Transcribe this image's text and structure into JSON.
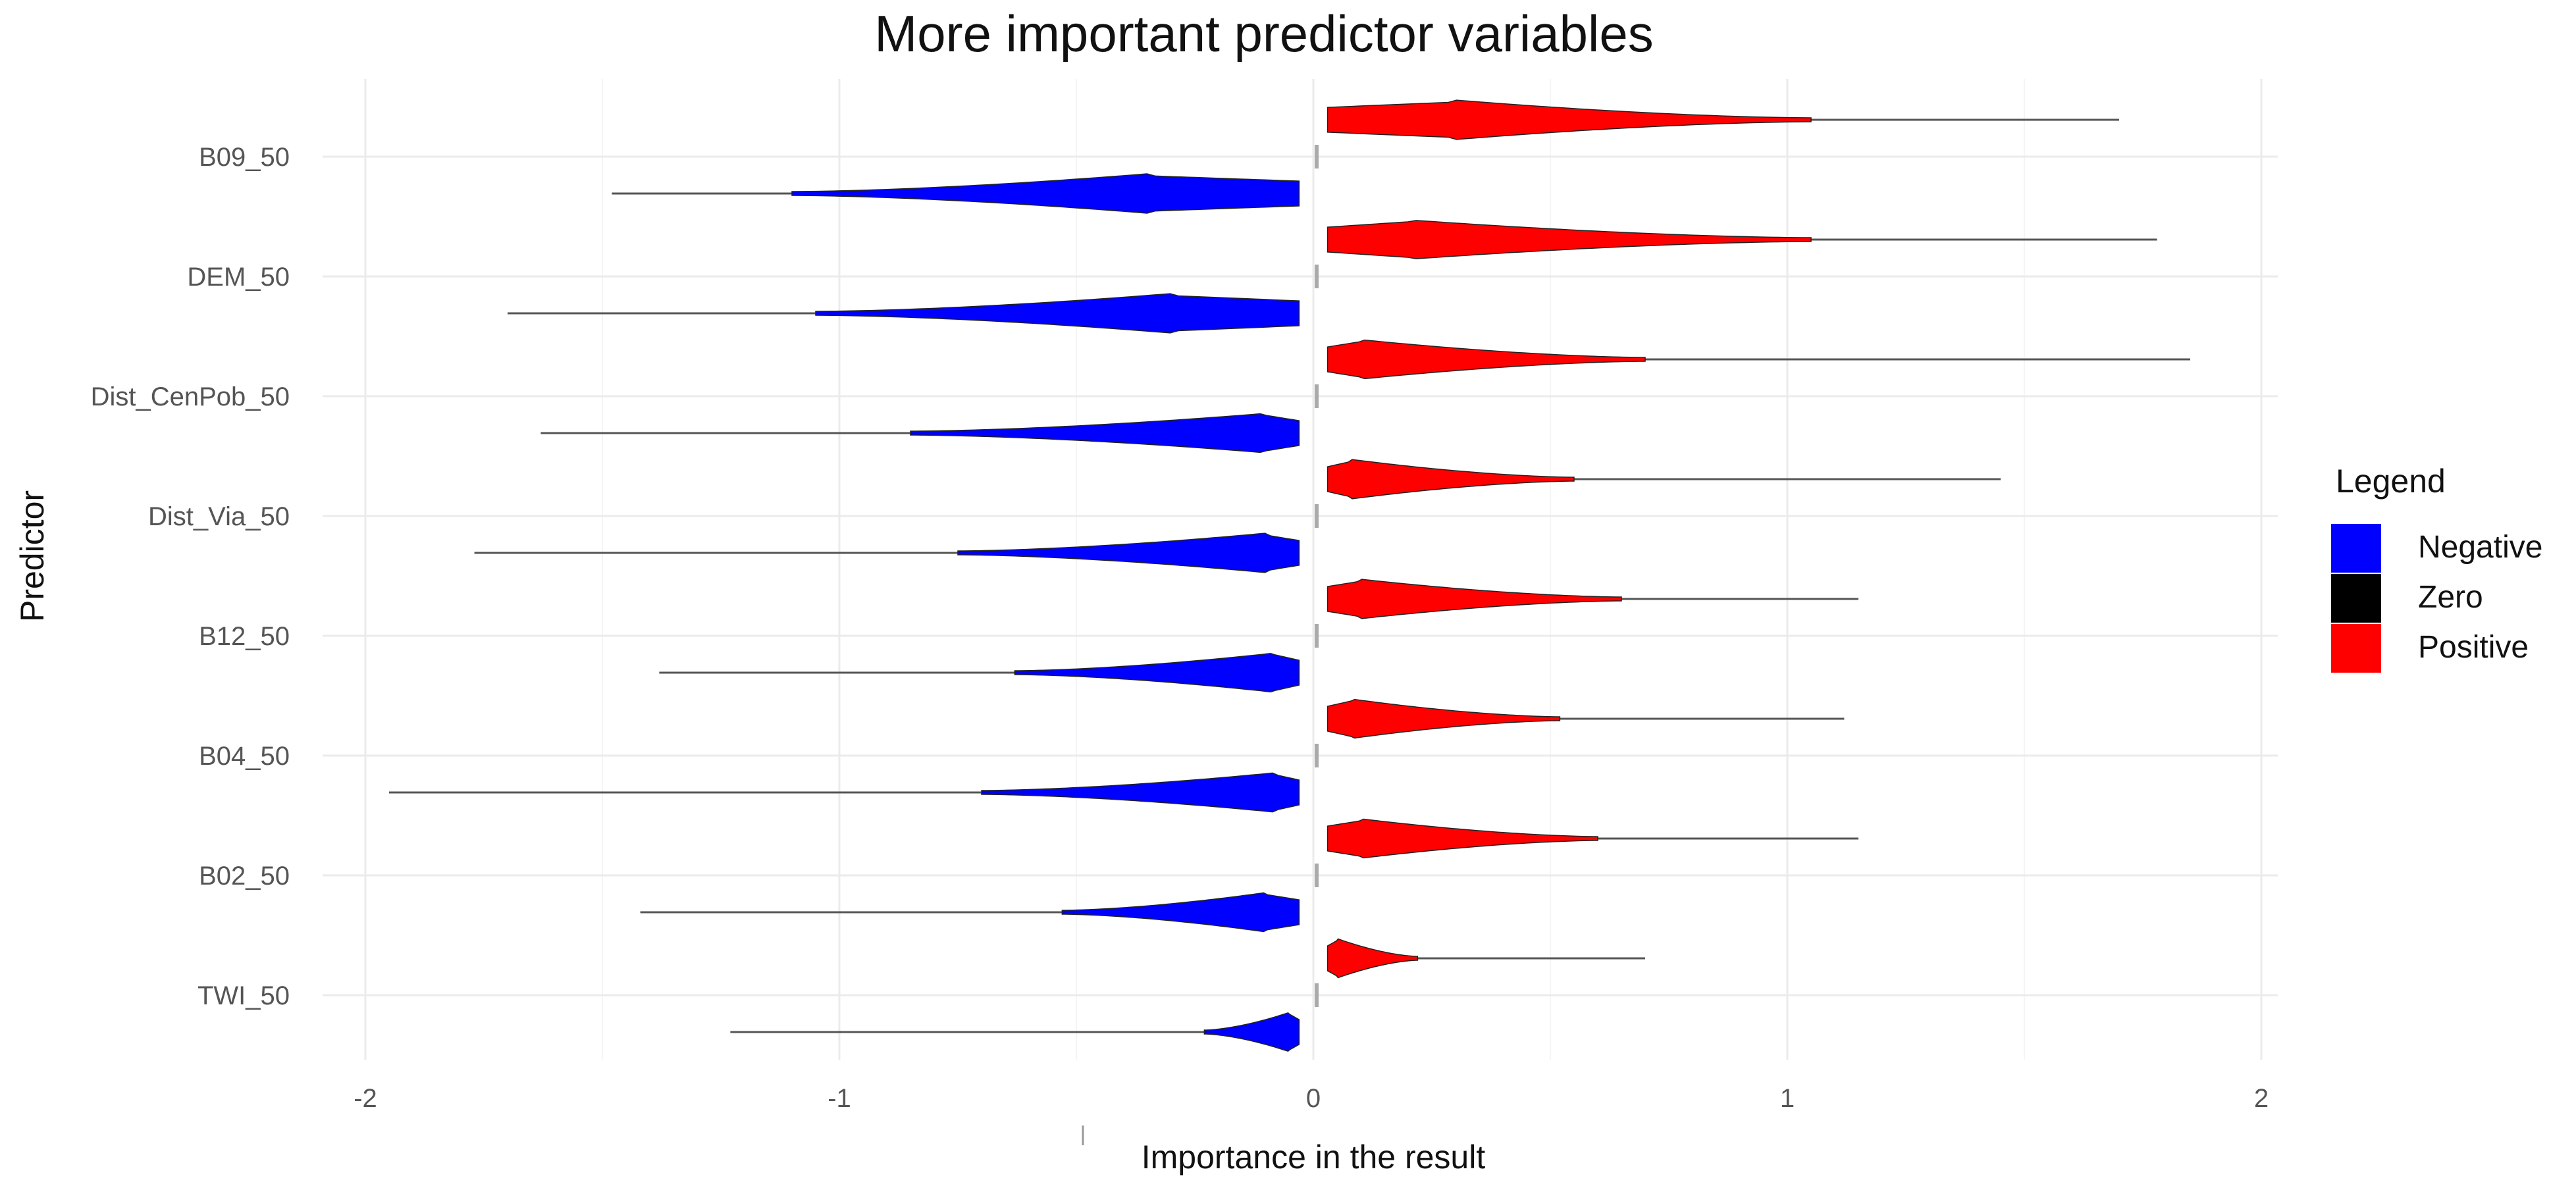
{
  "chart_data": {
    "type": "violin",
    "title": "More important predictor variables",
    "xlabel": "Importance in the result",
    "ylabel": "Predictor",
    "xlim": [
      -2,
      2
    ],
    "x_ticks": [
      -2,
      -1,
      0,
      1,
      2
    ],
    "predictors": [
      "B09_50",
      "DEM_50",
      "Dist_CenPob_50",
      "Dist_Via_50",
      "B12_50",
      "B04_50",
      "B02_50",
      "TWI_50"
    ],
    "grid": true,
    "legend": {
      "title": "Legend",
      "position": "right",
      "items": [
        {
          "label": "Negative",
          "color": "#0000ff"
        },
        {
          "label": "Zero",
          "color": "#000000"
        },
        {
          "label": "Positive",
          "color": "#ff0000"
        }
      ]
    },
    "series": [
      {
        "predictor": "B09_50",
        "positive": {
          "min": 0.03,
          "mode": 0.3,
          "bulk_end": 1.05,
          "max": 1.7
        },
        "negative": {
          "min": -1.48,
          "mode": -0.35,
          "bulk_start": -1.1,
          "max": -0.03
        }
      },
      {
        "predictor": "DEM_50",
        "positive": {
          "min": 0.03,
          "mode": 0.2,
          "bulk_end": 1.05,
          "max": 1.78
        },
        "negative": {
          "min": -1.7,
          "mode": -0.3,
          "bulk_start": -1.05,
          "max": -0.03
        }
      },
      {
        "predictor": "Dist_CenPob_50",
        "positive": {
          "min": 0.03,
          "mode": 0.1,
          "bulk_end": 0.7,
          "max": 1.85
        },
        "negative": {
          "min": -1.63,
          "mode": -0.1,
          "bulk_start": -0.85,
          "max": -0.03
        }
      },
      {
        "predictor": "Dist_Via_50",
        "positive": {
          "min": 0.03,
          "mode": 0.08,
          "bulk_end": 0.55,
          "max": 1.45
        },
        "negative": {
          "min": -1.77,
          "mode": -0.1,
          "bulk_start": -0.75,
          "max": -0.03
        }
      },
      {
        "predictor": "B12_50",
        "positive": {
          "min": 0.03,
          "mode": 0.1,
          "bulk_end": 0.65,
          "max": 1.15
        },
        "negative": {
          "min": -1.38,
          "mode": -0.08,
          "bulk_start": -0.63,
          "max": -0.03
        }
      },
      {
        "predictor": "B04_50",
        "positive": {
          "min": 0.03,
          "mode": 0.08,
          "bulk_end": 0.52,
          "max": 1.12
        },
        "negative": {
          "min": -1.95,
          "mode": -0.08,
          "bulk_start": -0.7,
          "max": -0.03
        }
      },
      {
        "predictor": "B02_50",
        "positive": {
          "min": 0.03,
          "mode": 0.1,
          "bulk_end": 0.6,
          "max": 1.15
        },
        "negative": {
          "min": -1.42,
          "mode": -0.1,
          "bulk_start": -0.53,
          "max": -0.03
        }
      },
      {
        "predictor": "TWI_50",
        "positive": {
          "min": 0.03,
          "mode": 0.05,
          "bulk_end": 0.22,
          "max": 0.7
        },
        "negative": {
          "min": -1.23,
          "mode": -0.05,
          "bulk_start": -0.23,
          "max": -0.03
        }
      }
    ]
  }
}
